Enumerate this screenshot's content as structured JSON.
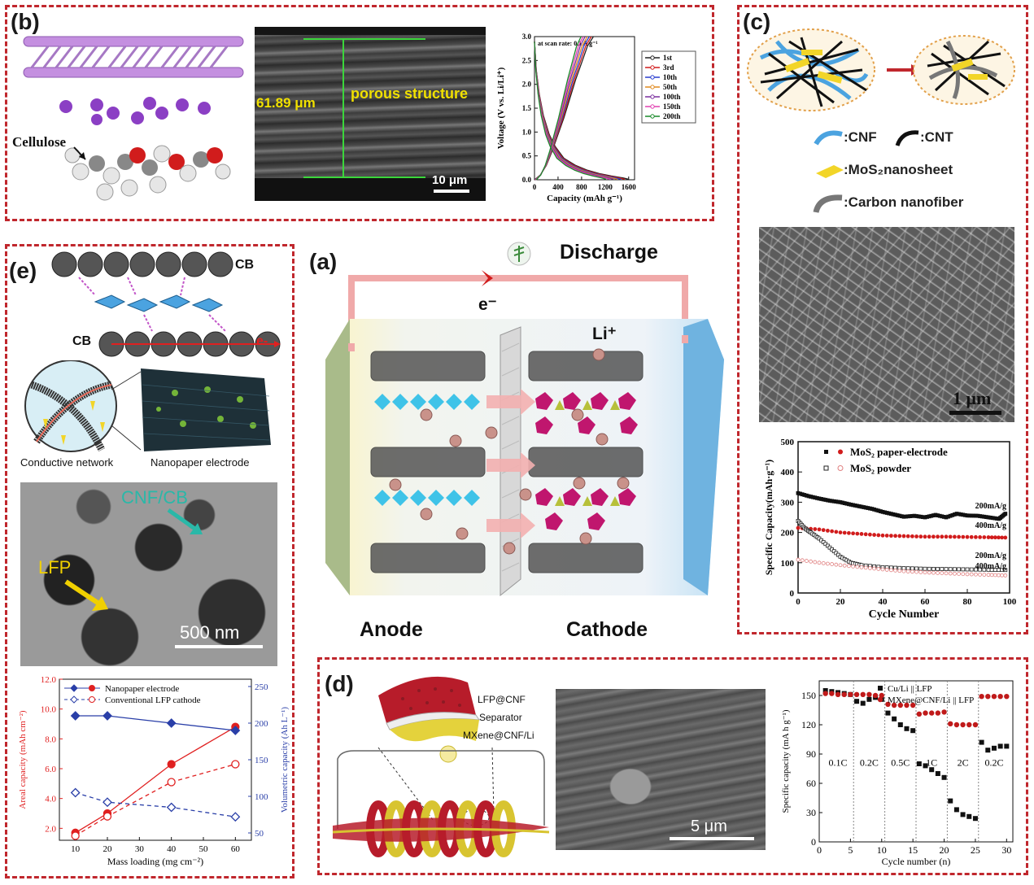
{
  "panel_b": {
    "label": "(b)",
    "cellulose_label": "Cellulose",
    "sem_thickness": "61.89 μm",
    "sem_caption": "porous structure",
    "sem_scale": "10 μm",
    "chart_data": {
      "type": "line",
      "title": "at scan rate: 0.1 A g⁻¹",
      "xlabel": "Capacity (mAh g⁻¹)",
      "ylabel": "Voltage (V vs. Li/Li⁺)",
      "xlim": [
        0,
        1700
      ],
      "ylim": [
        0,
        3.0
      ],
      "xticks": [
        "0",
        "400",
        "800",
        "1200",
        "1600"
      ],
      "yticks": [
        "0.0",
        "0.5",
        "1.0",
        "1.5",
        "2.0",
        "2.5",
        "3.0"
      ],
      "legend": [
        "1st",
        "3rd",
        "10th",
        "50th",
        "100th",
        "150th",
        "200th"
      ],
      "legend_colors": [
        "#222222",
        "#d11c1c",
        "#2a3fcf",
        "#e08a1e",
        "#7a2f9e",
        "#e040b0",
        "#1a8a2a"
      ],
      "series_discharge_x": [
        0,
        30,
        80,
        150,
        250,
        350,
        500,
        700,
        900,
        1100,
        1300,
        1500,
        1600
      ],
      "series_discharge_y": [
        2.9,
        2.3,
        1.8,
        1.35,
        0.95,
        0.7,
        0.45,
        0.3,
        0.2,
        0.13,
        0.08,
        0.04,
        0.01
      ],
      "series_charge_x": [
        0,
        100,
        200,
        300,
        400,
        500,
        600,
        700,
        800,
        900,
        1000
      ],
      "series_charge_y": [
        0.0,
        0.1,
        0.3,
        0.6,
        0.95,
        1.3,
        1.7,
        2.1,
        2.45,
        2.8,
        3.0
      ]
    }
  },
  "panel_c": {
    "label": "(c)",
    "legend": {
      "cnf": ":CNF",
      "cnt": ":CNT",
      "mos2": ":MoS₂nanosheet",
      "carbon": ":Carbon nanofiber"
    },
    "sem_scale": "1 μm",
    "chart_data": {
      "type": "scatter",
      "xlabel": "Cycle Number",
      "ylabel": "Specific Capacity(mAh·g⁻¹)",
      "xlim": [
        0,
        100
      ],
      "ylim": [
        0,
        500
      ],
      "xticks": [
        "0",
        "20",
        "40",
        "60",
        "80",
        "100"
      ],
      "yticks": [
        "0",
        "100",
        "200",
        "300",
        "400",
        "500"
      ],
      "legend": [
        "MoS₂ paper-electrode",
        "MoS₂ powder"
      ],
      "annotations": [
        "200mA/g",
        "400mA/g",
        "200mA/g",
        "400mA/g"
      ],
      "series": [
        {
          "name": "paper 200mA/g",
          "x": [
            0,
            5,
            10,
            15,
            20,
            25,
            30,
            35,
            40,
            45,
            50,
            55,
            60,
            65,
            70,
            75,
            80,
            85,
            90,
            95,
            98
          ],
          "y": [
            330,
            320,
            312,
            305,
            300,
            292,
            285,
            278,
            268,
            260,
            252,
            255,
            250,
            258,
            250,
            262,
            256,
            255,
            250,
            245,
            262
          ]
        },
        {
          "name": "paper 400mA/g",
          "x": [
            0,
            10,
            20,
            30,
            40,
            50,
            60,
            70,
            80,
            90,
            98
          ],
          "y": [
            215,
            210,
            200,
            195,
            190,
            188,
            186,
            186,
            185,
            184,
            183
          ]
        },
        {
          "name": "powder 200mA/g",
          "x": [
            0,
            3,
            6,
            10,
            15,
            20,
            25,
            30,
            40,
            50,
            60,
            70,
            80,
            90,
            98
          ],
          "y": [
            238,
            215,
            200,
            180,
            150,
            120,
            100,
            92,
            85,
            82,
            80,
            79,
            78,
            77,
            76
          ]
        },
        {
          "name": "powder 400mA/g",
          "x": [
            0,
            10,
            20,
            30,
            40,
            50,
            60,
            70,
            80,
            90,
            98
          ],
          "y": [
            110,
            100,
            92,
            85,
            78,
            72,
            68,
            65,
            62,
            60,
            58
          ]
        }
      ]
    }
  },
  "panel_a": {
    "label": "(a)",
    "discharge": "Discharge",
    "electron": "e⁻",
    "ion": "Li⁺",
    "anode": "Anode",
    "cathode": "Cathode"
  },
  "panel_e": {
    "label": "(e)",
    "cb_top": "CB",
    "cb_bottom": "CB",
    "electron": "e-",
    "conductive_network": "Conductive network",
    "nanopaper_electrode": "Nanopaper electrode",
    "tem_cnf": "CNF/CB",
    "tem_lfp": "LFP",
    "tem_scale": "500 nm",
    "chart_data": {
      "type": "line",
      "xlabel": "Mass loading (mg cm⁻²)",
      "ylabel_left": "Areal capacity (mAh cm⁻²)",
      "ylabel_right": "Volumetric capacity (Ah L⁻¹)",
      "xlim": [
        5,
        65
      ],
      "ylim_left": [
        1.2,
        12.0
      ],
      "ylim_right": [
        40,
        260
      ],
      "xticks": [
        "10",
        "20",
        "30",
        "40",
        "50",
        "60"
      ],
      "yticks_left": [
        "2.0",
        "4.0",
        "6.0",
        "8.0",
        "10.0",
        "12.0"
      ],
      "yticks_right": [
        "50",
        "100",
        "150",
        "200",
        "250"
      ],
      "legend": [
        "Nanopaper electrode",
        "Conventional LFP cathode"
      ],
      "x": [
        10,
        20,
        40,
        60
      ],
      "series": [
        {
          "name": "Nanopaper electrode areal",
          "axis": "left",
          "values": [
            1.7,
            3.0,
            6.3,
            8.8
          ]
        },
        {
          "name": "Conventional LFP cathode areal",
          "axis": "left",
          "values": [
            1.5,
            2.8,
            5.1,
            6.3
          ]
        },
        {
          "name": "Nanopaper electrode volumetric",
          "axis": "right",
          "values": [
            210,
            210,
            200,
            190
          ]
        },
        {
          "name": "Conventional LFP cathode volumetric",
          "axis": "right",
          "values": [
            105,
            92,
            85,
            72
          ]
        }
      ]
    }
  },
  "panel_d": {
    "label": "(d)",
    "layer_top": "LFP@CNF",
    "layer_mid": "Separator",
    "layer_bottom": "MXene@CNF/Li",
    "sem_scale": "5 μm",
    "chart_data": {
      "type": "scatter",
      "xlabel": "Cycle number (n)",
      "ylabel": "Specific capacity (mA h g⁻¹)",
      "xlim": [
        0,
        31
      ],
      "ylim": [
        0,
        165
      ],
      "xticks": [
        "0",
        "5",
        "10",
        "15",
        "20",
        "25",
        "30"
      ],
      "yticks": [
        "0",
        "30",
        "60",
        "90",
        "120",
        "150"
      ],
      "legend": [
        "Cu/Li || LFP",
        "MXene@CNF/Li || LFP"
      ],
      "rate_labels": [
        "0.1C",
        "0.2C",
        "0.5C",
        "1C",
        "2C",
        "0.2C"
      ],
      "series": [
        {
          "name": "Cu/Li || LFP",
          "x": [
            1,
            2,
            3,
            4,
            5,
            6,
            7,
            8,
            9,
            10,
            11,
            12,
            13,
            14,
            15,
            16,
            17,
            18,
            19,
            20,
            21,
            22,
            23,
            24,
            25,
            26,
            27,
            28,
            29,
            30
          ],
          "y": [
            155,
            154,
            153,
            152,
            151,
            144,
            142,
            146,
            148,
            146,
            132,
            126,
            120,
            116,
            114,
            80,
            78,
            74,
            70,
            66,
            42,
            33,
            28,
            26,
            24,
            102,
            94,
            96,
            98,
            98
          ]
        },
        {
          "name": "MXene@CNF/Li || LFP",
          "x": [
            1,
            2,
            3,
            4,
            5,
            6,
            7,
            8,
            9,
            10,
            11,
            12,
            13,
            14,
            15,
            16,
            17,
            18,
            19,
            20,
            21,
            22,
            23,
            24,
            25,
            26,
            27,
            28,
            29,
            30
          ],
          "y": [
            152,
            152,
            151,
            151,
            151,
            151,
            151,
            151,
            150,
            150,
            141,
            140,
            140,
            140,
            140,
            131,
            132,
            132,
            132,
            133,
            121,
            120,
            120,
            120,
            120,
            149,
            149,
            149,
            149,
            149
          ]
        }
      ]
    }
  },
  "colors": {
    "panel_border": "#c0272d",
    "accent_red": "#e02020",
    "accent_blue": "#2a3fa8"
  }
}
